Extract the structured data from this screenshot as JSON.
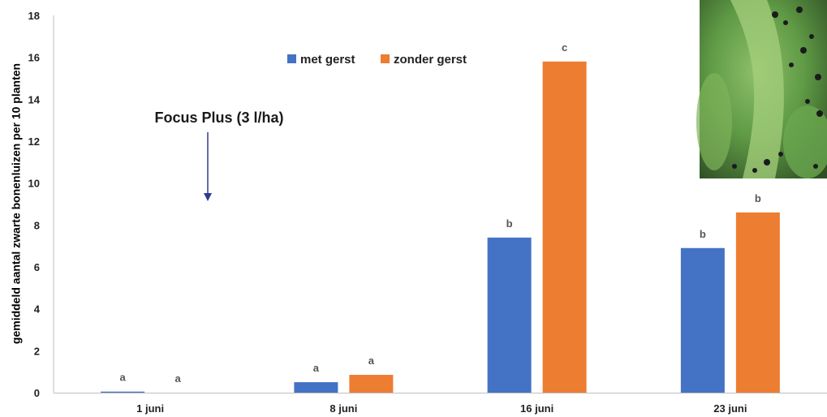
{
  "chart_data": {
    "type": "bar",
    "categories": [
      "1 juni",
      "8 juni",
      "16 juni",
      "23 juni"
    ],
    "series": [
      {
        "name": "met gerst",
        "color": "#4472C4",
        "values": [
          0.05,
          0.5,
          7.4,
          6.9
        ],
        "labels": [
          "a",
          "a",
          "b",
          "b"
        ]
      },
      {
        "name": "zonder gerst",
        "color": "#ED7D31",
        "values": [
          0.0,
          0.85,
          15.8,
          8.6
        ],
        "labels": [
          "a",
          "a",
          "c",
          "b"
        ]
      }
    ],
    "ylabel": "gemiddeld aantal zwarte bonenluizen per 10 planten",
    "xlabel": "",
    "ylim": [
      0,
      18
    ],
    "yticks": [
      "0",
      "2",
      "4",
      "6",
      "8",
      "10",
      "12",
      "14",
      "16",
      "18"
    ],
    "grid": false,
    "legend": "top-center",
    "annotation": {
      "text": "Focus Plus (3 l/ha)",
      "category": "1 juni"
    }
  },
  "photo": {
    "description_icon": "plant-photo-icon"
  }
}
